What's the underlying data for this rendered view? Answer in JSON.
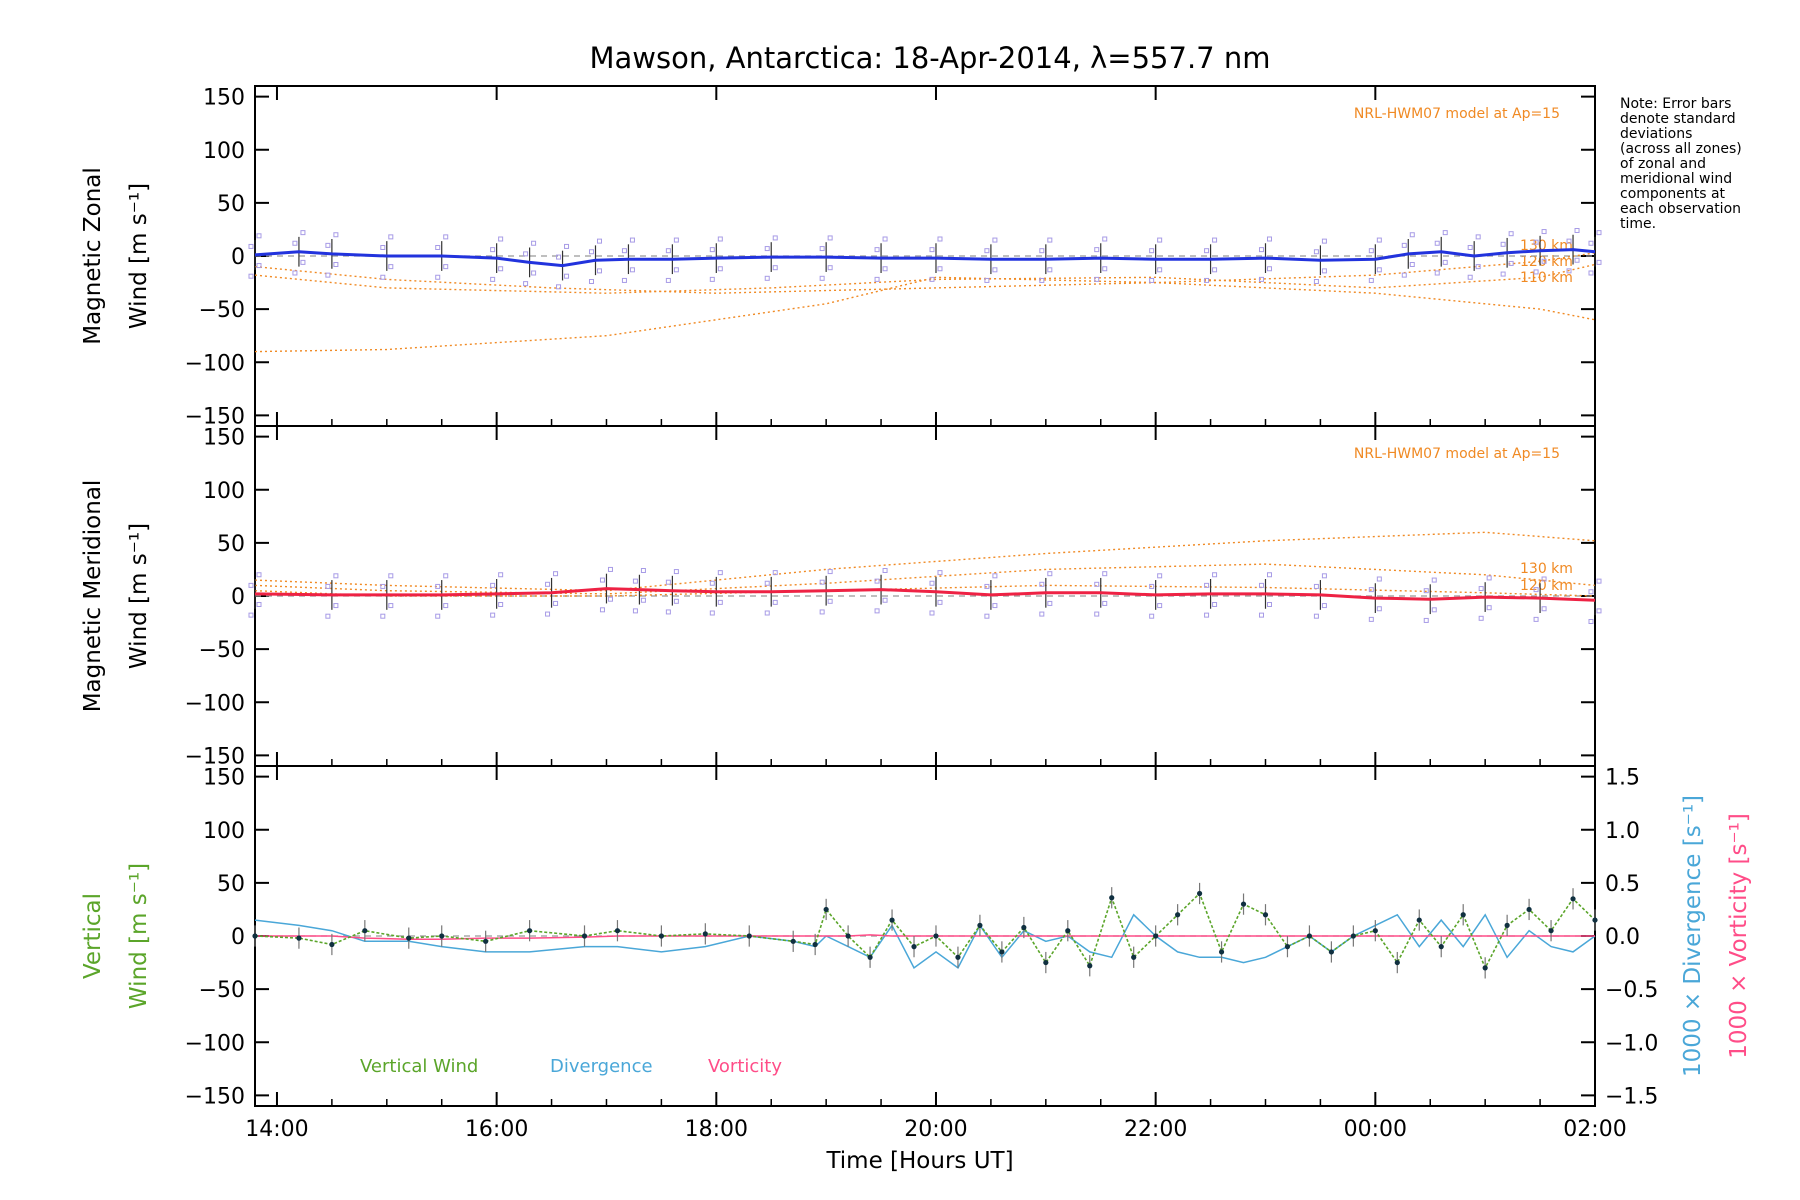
{
  "chart_data": [
    {
      "type": "line",
      "title": "Mawson, Antarctica: 18-Apr-2014, λ=557.7 nm",
      "ylabel_line1": "Magnetic Zonal",
      "ylabel_line2": "Wind [m s⁻¹]",
      "ylim": [
        -160,
        160
      ],
      "yticks": [
        "150",
        "100",
        "50",
        "0",
        "−50",
        "−100",
        "−150"
      ],
      "model_label": "NRL-HWM07 model at Ap=15",
      "altitude_labels": [
        "130 km",
        "120 km",
        "110 km"
      ],
      "colors": {
        "wind": "#2233dd",
        "wind_late": "#5aa9e6",
        "model": "#f08a24",
        "zone_points": "#a79be6",
        "error_bars": "#444444"
      },
      "x_hours": [
        13.8,
        14.2,
        14.5,
        15.0,
        15.5,
        16.0,
        16.3,
        16.6,
        16.9,
        17.2,
        17.6,
        18.0,
        18.5,
        19.0,
        19.5,
        20.0,
        20.5,
        21.0,
        21.5,
        22.0,
        22.5,
        23.0,
        23.5,
        24.0,
        24.3,
        24.6,
        24.9,
        25.2,
        25.5,
        25.8,
        26.0
      ],
      "wind": [
        1,
        4,
        2,
        0,
        0,
        -2,
        -6,
        -9,
        -4,
        -3,
        -3,
        -2,
        -1,
        -1,
        -2,
        -2,
        -3,
        -3,
        -2,
        -3,
        -3,
        -2,
        -4,
        -3,
        2,
        4,
        0,
        3,
        5,
        6,
        4
      ],
      "model_curves": [
        {
          "name": "130 km",
          "x": [
            13.8,
            15.0,
            16.5,
            18.0,
            20.0,
            22.0,
            24.0,
            25.5,
            26.0
          ],
          "y": [
            -10,
            -22,
            -30,
            -35,
            -30,
            -25,
            -18,
            -5,
            3
          ]
        },
        {
          "name": "120 km",
          "x": [
            13.8,
            15.0,
            17.0,
            18.5,
            20.0,
            22.0,
            24.0,
            25.5,
            26.0
          ],
          "y": [
            -18,
            -30,
            -35,
            -30,
            -22,
            -20,
            -30,
            -20,
            -8
          ]
        },
        {
          "name": "110 km",
          "x": [
            13.8,
            15.0,
            17.0,
            19.0,
            20.0,
            22.0,
            24.0,
            25.5,
            26.0
          ],
          "y": [
            -90,
            -88,
            -75,
            -45,
            -20,
            -25,
            -35,
            -50,
            -60
          ]
        }
      ]
    },
    {
      "type": "line",
      "ylabel_line1": "Magnetic Meridional",
      "ylabel_line2": "Wind [m s⁻¹]",
      "ylim": [
        -160,
        160
      ],
      "yticks": [
        "150",
        "100",
        "50",
        "0",
        "−50",
        "−100",
        "−150"
      ],
      "model_label": "NRL-HWM07 model at Ap=15",
      "altitude_labels": [
        "130 km",
        "120 km"
      ],
      "colors": {
        "wind": "#ee2244",
        "wind_late": "#ff4d88",
        "model": "#f08a24",
        "zone_points": "#a79be6"
      },
      "x_hours": [
        13.8,
        14.5,
        15.0,
        15.5,
        16.0,
        16.5,
        17.0,
        17.3,
        17.6,
        18.0,
        18.5,
        19.0,
        19.5,
        20.0,
        20.5,
        21.0,
        21.5,
        22.0,
        22.5,
        23.0,
        23.5,
        24.0,
        24.5,
        25.0,
        25.5,
        26.0
      ],
      "wind": [
        2,
        1,
        1,
        1,
        2,
        3,
        7,
        6,
        5,
        4,
        4,
        5,
        6,
        4,
        1,
        3,
        3,
        1,
        2,
        2,
        1,
        -2,
        -3,
        -1,
        -2,
        -4
      ],
      "model_curves": [
        {
          "name": "top",
          "x": [
            13.8,
            15.0,
            17.0,
            19.0,
            21.0,
            23.0,
            25.0,
            26.0
          ],
          "y": [
            15,
            10,
            5,
            25,
            40,
            52,
            60,
            52
          ]
        },
        {
          "name": "130 km",
          "x": [
            13.8,
            15.0,
            17.0,
            19.0,
            21.0,
            23.0,
            25.0,
            26.0
          ],
          "y": [
            10,
            5,
            2,
            12,
            25,
            30,
            20,
            10
          ]
        },
        {
          "name": "120 km",
          "x": [
            13.8,
            15.0,
            17.0,
            19.0,
            21.0,
            23.0,
            25.0,
            26.0
          ],
          "y": [
            5,
            0,
            0,
            5,
            10,
            8,
            3,
            0
          ]
        }
      ]
    },
    {
      "type": "line",
      "ylabel_line1": "Vertical",
      "ylabel_line2": "Wind [m s⁻¹]",
      "ylim": [
        -160,
        160
      ],
      "yticks": [
        "150",
        "100",
        "50",
        "0",
        "−50",
        "−100",
        "−150"
      ],
      "right_ylim": [
        -1.6,
        1.6
      ],
      "right_yticks": [
        "1.5",
        "1.0",
        "0.5",
        "0.0",
        "−0.5",
        "−1.0",
        "−1.5"
      ],
      "right_ylabel_divergence": "1000 × Divergence [s⁻¹]",
      "right_ylabel_vorticity": "1000 × Vorticity [s⁻¹]",
      "xlabel": "Time [Hours UT]",
      "xticks": [
        "14:00",
        "16:00",
        "18:00",
        "20:00",
        "22:00",
        "00:00",
        "02:00"
      ],
      "xlim": [
        13.8,
        26.0
      ],
      "legend": [
        "Vertical Wind",
        "Divergence",
        "Vorticity"
      ],
      "colors": {
        "vertical": "#5ba52a",
        "divergence": "#4aa7d8",
        "vorticity": "#ff4d88",
        "points": "#103040"
      },
      "x_hours": [
        13.8,
        14.2,
        14.5,
        14.8,
        15.2,
        15.5,
        15.9,
        16.3,
        16.8,
        17.1,
        17.5,
        17.9,
        18.3,
        18.7,
        18.9,
        19.0,
        19.2,
        19.4,
        19.6,
        19.8,
        20.0,
        20.2,
        20.4,
        20.6,
        20.8,
        21.0,
        21.2,
        21.4,
        21.6,
        21.8,
        22.0,
        22.2,
        22.4,
        22.6,
        22.8,
        23.0,
        23.2,
        23.4,
        23.6,
        23.8,
        24.0,
        24.2,
        24.4,
        24.6,
        24.8,
        25.0,
        25.2,
        25.4,
        25.6,
        25.8,
        26.0
      ],
      "vertical": [
        0,
        -2,
        -8,
        5,
        -2,
        0,
        -5,
        5,
        0,
        5,
        0,
        2,
        0,
        -5,
        -8,
        25,
        0,
        -20,
        15,
        -10,
        0,
        -20,
        10,
        -15,
        8,
        -25,
        5,
        -28,
        36,
        -20,
        0,
        20,
        40,
        -15,
        30,
        20,
        -10,
        0,
        -15,
        0,
        5,
        -25,
        15,
        -10,
        20,
        -30,
        10,
        25,
        5,
        35,
        15
      ],
      "divergence": [
        0.15,
        0.1,
        0.05,
        -0.05,
        -0.05,
        -0.1,
        -0.15,
        -0.15,
        -0.1,
        -0.1,
        -0.15,
        -0.1,
        0.0,
        -0.05,
        -0.1,
        0.0,
        -0.1,
        -0.2,
        0.1,
        -0.3,
        -0.15,
        -0.3,
        0.1,
        -0.2,
        0.05,
        -0.05,
        0.0,
        -0.15,
        -0.2,
        0.2,
        0.0,
        -0.15,
        -0.2,
        -0.2,
        -0.25,
        -0.2,
        -0.1,
        0.0,
        -0.15,
        0.0,
        0.1,
        0.2,
        -0.1,
        0.15,
        -0.1,
        0.2,
        -0.2,
        0.05,
        -0.1,
        -0.15,
        0.0
      ],
      "vorticity": [
        0.0,
        0.0,
        0.0,
        -0.02,
        -0.03,
        -0.03,
        -0.02,
        -0.02,
        -0.01,
        0.0,
        0.0,
        0.0,
        0.0,
        0.0,
        0.0,
        0.0,
        0.0,
        0.01,
        0.0,
        0.0,
        0.0,
        0.0,
        0.0,
        0.0,
        0.0,
        0.0,
        0.0,
        0.0,
        0.0,
        0.0,
        0.0,
        0.0,
        0.0,
        0.0,
        0.0,
        0.0,
        0.0,
        0.0,
        0.0,
        0.0,
        0.0,
        0.0,
        0.0,
        0.0,
        0.0,
        0.0,
        0.0,
        0.0,
        0.0,
        0.0,
        0.0
      ]
    }
  ],
  "note_lines": [
    "Note: Error bars",
    "denote standard",
    "deviations",
    "(across all zones)",
    "of zonal and",
    "meridional wind",
    "components at",
    "each observation",
    "time."
  ]
}
